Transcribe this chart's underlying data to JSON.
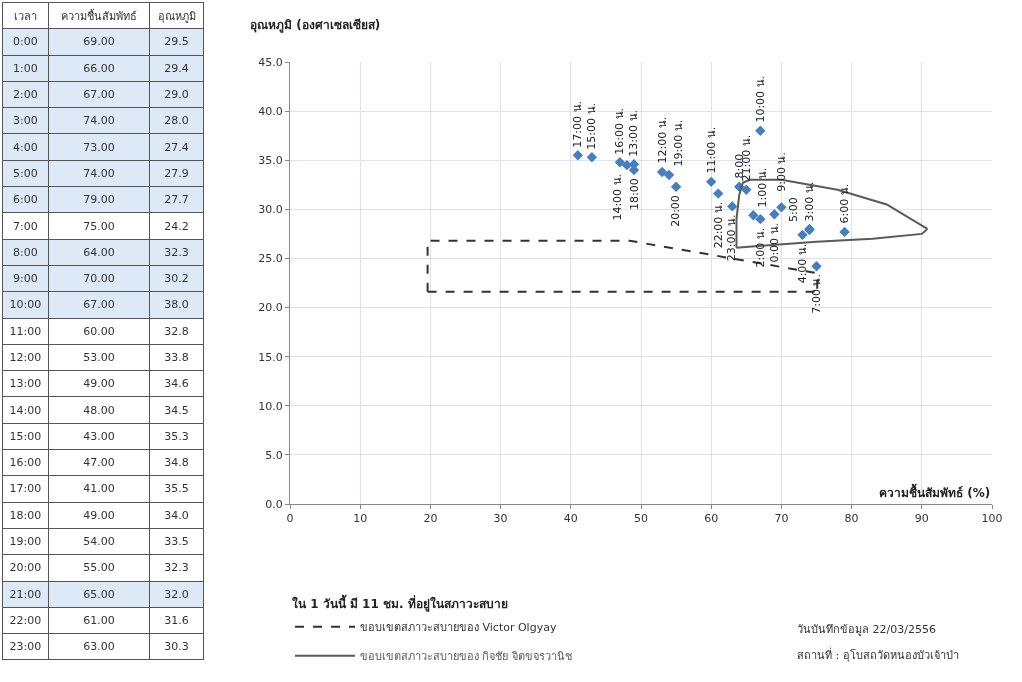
{
  "chart_data": [
    {
      "type": "heatmap",
      "ylabel": "เวลา",
      "categories": [
        "ความชื้นสัมพัทธ์",
        "อุณหภูมิ"
      ],
      "y_categories": [
        "0:00",
        "1:00",
        "2:00",
        "3:00",
        "4:00",
        "5:00",
        "6:00",
        "7:00",
        "8:00",
        "9:00",
        "10:00",
        "11:00",
        "12:00",
        "13:00",
        "14:00",
        "15:00",
        "16:00",
        "17:00",
        "18:00",
        "19:00",
        "20:00",
        "21:00",
        "22:00",
        "23:00"
      ],
      "cells": [
        [
          69,
          29.5
        ],
        [
          66,
          29.4
        ],
        [
          67,
          29.0
        ],
        [
          74,
          28.0
        ],
        [
          73,
          27.4
        ],
        [
          74,
          27.9
        ],
        [
          79,
          27.7
        ],
        [
          75,
          24.2
        ],
        [
          64,
          32.3
        ],
        [
          70,
          30.2
        ],
        [
          67,
          38.0
        ],
        [
          60,
          32.8
        ],
        [
          53,
          33.8
        ],
        [
          49,
          34.6
        ],
        [
          48,
          34.5
        ],
        [
          43,
          35.3
        ],
        [
          47,
          34.8
        ],
        [
          41,
          35.5
        ],
        [
          49,
          34.0
        ],
        [
          54,
          33.5
        ],
        [
          55,
          32.3
        ],
        [
          65,
          32.0
        ],
        [
          61,
          31.6
        ],
        [
          63,
          30.3
        ]
      ],
      "cell_labels": [
        [
          "69.00",
          "29.5"
        ],
        [
          "66.00",
          "29.4"
        ],
        [
          "67.00",
          "29.0"
        ],
        [
          "74.00",
          "28.0"
        ],
        [
          "73.00",
          "27.4"
        ],
        [
          "74.00",
          "27.9"
        ],
        [
          "79.00",
          "27.7"
        ],
        [
          "75.00",
          "24.2"
        ],
        [
          "64.00",
          "32.3"
        ],
        [
          "70.00",
          "30.2"
        ],
        [
          "67.00",
          "38.0"
        ],
        [
          "60.00",
          "32.8"
        ],
        [
          "53.00",
          "33.8"
        ],
        [
          "49.00",
          "34.6"
        ],
        [
          "48.00",
          "34.5"
        ],
        [
          "43.00",
          "35.3"
        ],
        [
          "47.00",
          "34.8"
        ],
        [
          "41.00",
          "35.5"
        ],
        [
          "49.00",
          "34.0"
        ],
        [
          "54.00",
          "33.5"
        ],
        [
          "55.00",
          "32.3"
        ],
        [
          "65.00",
          "32.0"
        ],
        [
          "61.00",
          "31.6"
        ],
        [
          "63.00",
          "30.3"
        ]
      ],
      "colors": [
        "#dde9f6",
        "#dde9f6",
        "#dde9f6",
        "#dde9f6",
        "#dde9f6",
        "#dde9f6",
        "#dde9f6",
        "#ffffff",
        "#dde9f6",
        "#dde9f6",
        "#dde9f6",
        "#ffffff",
        "#ffffff",
        "#ffffff",
        "#ffffff",
        "#ffffff",
        "#ffffff",
        "#ffffff",
        "#ffffff",
        "#ffffff",
        "#ffffff",
        "#dde9f6",
        "#ffffff",
        "#ffffff"
      ]
    },
    {
      "type": "scatter",
      "xlabel": "ความชื้นสัมพัทธ์ (%)",
      "ylabel": "อุณหภูมิ (องศาเซลเซียส)",
      "xlim": [
        0,
        100
      ],
      "xticks": [
        0,
        10,
        20,
        30,
        40,
        50,
        60,
        70,
        80,
        90,
        100
      ],
      "ylim": [
        0,
        45
      ],
      "yticks": [
        {
          "value": 0,
          "label": "0.0"
        },
        {
          "value": 5,
          "label": "5.0"
        },
        {
          "value": 10,
          "label": "10.0"
        },
        {
          "value": 15,
          "label": "15.0"
        },
        {
          "value": 20,
          "label": "20.0"
        },
        {
          "value": 25,
          "label": "25.0"
        },
        {
          "value": 30,
          "label": "30.0"
        },
        {
          "value": 35,
          "label": "35.0"
        },
        {
          "value": 40,
          "label": "40.0"
        },
        {
          "value": 45,
          "label": "45.0"
        }
      ],
      "grid": true,
      "legend": "bottom left",
      "marker": "diamond",
      "series": [
        {
          "type": "scatter",
          "color": "#4a7ebb",
          "x": [
            69,
            66,
            67,
            74,
            73,
            74,
            79,
            75,
            64,
            70,
            67,
            60,
            53,
            49,
            48,
            43,
            47,
            41,
            49,
            54,
            55,
            65,
            61,
            63
          ],
          "values": [
            29.5,
            29.4,
            29.0,
            28.0,
            27.4,
            27.9,
            27.7,
            24.2,
            32.3,
            30.2,
            38.0,
            32.8,
            33.8,
            34.6,
            34.5,
            35.3,
            34.8,
            35.5,
            34.0,
            33.5,
            32.3,
            32.0,
            31.6,
            30.3
          ]
        },
        {
          "type": "line",
          "name": "ขอบเขตสภาวะสบายของ Victor Olgyay",
          "color": "#333333",
          "line_style": "dashed",
          "marker": "none",
          "x": [
            19.6,
            19.6,
            48.4,
            75.1,
            75.1
          ],
          "values": [
            21.6,
            26.8,
            26.8,
            23.5,
            21.6
          ]
        },
        {
          "type": "line",
          "color": "#333333",
          "line_style": "dashed",
          "marker": "none",
          "x": [
            19.6,
            75.1
          ],
          "values": [
            21.6,
            21.6
          ]
        },
        {
          "type": "line",
          "name": "ขอบเขตสภาวะสบายของ กิจชัย จิตขจรวานิช",
          "color": "#5a5a5a",
          "line_style": "solid",
          "marker": "none",
          "x": [
            63.6,
            63.6,
            64,
            64.5,
            65.5,
            70,
            78,
            85,
            90.8
          ],
          "values": [
            26.1,
            29,
            31.5,
            32.7,
            33,
            33,
            32,
            30.5,
            28
          ]
        },
        {
          "type": "line",
          "color": "#5a5a5a",
          "line_style": "solid",
          "marker": "none",
          "x": [
            63.6,
            75,
            83,
            90,
            90.8
          ],
          "values": [
            26.1,
            26.7,
            27,
            27.5,
            28
          ]
        }
      ],
      "annotations": [
        "ใน 1 วันนี้ มี 11 ชม. ที่อยู่ในสภาวะสบาย",
        "วันบันทึกข้อมูล 22/03/2556",
        "สถานที่ : อุโบสถวัดหนองบัวเจ้าป่า",
        {
          "text": "0:00 น.",
          "x": 69,
          "y": 29.5
        },
        {
          "text": "1:00 น.",
          "x": 66,
          "y": 29.4
        },
        {
          "text": "2:00 น.",
          "x": 67,
          "y": 29.0
        },
        {
          "text": "3:00 น.",
          "x": 74,
          "y": 28.0
        },
        {
          "text": "4:00 น.",
          "x": 73,
          "y": 27.4
        },
        {
          "text": "5:00",
          "x": 74,
          "y": 27.9
        },
        {
          "text": "6:00 น.",
          "x": 79,
          "y": 27.7
        },
        {
          "text": "7:00 น.",
          "x": 75,
          "y": 24.2
        },
        {
          "text": "8:00",
          "x": 64,
          "y": 32.3
        },
        {
          "text": "9:00 น.",
          "x": 70,
          "y": 30.2
        },
        {
          "text": "10:00 น.",
          "x": 67,
          "y": 38.0
        },
        {
          "text": "11:00 น.",
          "x": 60,
          "y": 32.8
        },
        {
          "text": "12:00 น.",
          "x": 53,
          "y": 33.8
        },
        {
          "text": "13:00 น.",
          "x": 49,
          "y": 34.6
        },
        {
          "text": "14:00 น.",
          "x": 48,
          "y": 34.5
        },
        {
          "text": "15:00 น.",
          "x": 43,
          "y": 35.3
        },
        {
          "text": "16:00 น.",
          "x": 47,
          "y": 34.8
        },
        {
          "text": "17:00 น.",
          "x": 41,
          "y": 35.5
        },
        {
          "text": "18:00",
          "x": 49,
          "y": 34.0
        },
        {
          "text": "19:00 น.",
          "x": 54,
          "y": 33.5
        },
        {
          "text": "20:00",
          "x": 55,
          "y": 32.3
        },
        {
          "text": "21:00 น.",
          "x": 65,
          "y": 32.0
        },
        {
          "text": "22:00 น.",
          "x": 61,
          "y": 31.6
        },
        {
          "text": "23:00 น.",
          "x": 63,
          "y": 30.3
        }
      ]
    }
  ]
}
